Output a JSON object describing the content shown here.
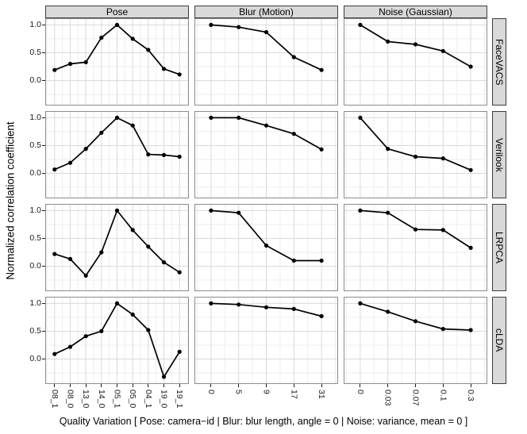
{
  "chart_data": {
    "type": "line",
    "title": "",
    "ylabel": "Normalized correlation coefficient",
    "xlabel": "Quality Variation [ Pose: camera−id | Blur: blur length, angle = 0 | Noise: variance, mean = 0 ]",
    "legend": "none",
    "grid": true,
    "ylim": [
      -0.45,
      1.12
    ],
    "y_ticks": [
      1.0,
      0.5,
      0.0
    ],
    "y_tick_labels": [
      "1.0",
      "0.5",
      "0.0"
    ],
    "y_minor_gridlines": [
      -0.25,
      0.25,
      0.75
    ],
    "facet_columns": [
      {
        "label": "Pose",
        "x_tick_labels": [
          "08_1",
          "08_0",
          "13_0",
          "14_0",
          "05_1",
          "05_0",
          "04_1",
          "19_0",
          "19_1"
        ]
      },
      {
        "label": "Blur (Motion)",
        "x_tick_labels": [
          "0",
          "5",
          "9",
          "17",
          "31"
        ]
      },
      {
        "label": "Noise (Gaussian)",
        "x_tick_labels": [
          "0",
          "0.03",
          "0.07",
          "0.1",
          "0.3"
        ]
      }
    ],
    "facet_rows": [
      "FaceVACS",
      "Verilook",
      "LRPCA",
      "cLDA"
    ],
    "series": {
      "FaceVACS": {
        "Pose": [
          0.19,
          0.3,
          0.33,
          0.77,
          1.0,
          0.75,
          0.55,
          0.21,
          0.11
        ],
        "Blur (Motion)": [
          1.0,
          0.96,
          0.87,
          0.42,
          0.19
        ],
        "Noise (Gaussian)": [
          1.0,
          0.7,
          0.65,
          0.53,
          0.25
        ]
      },
      "Verilook": {
        "Pose": [
          0.07,
          0.19,
          0.44,
          0.73,
          1.0,
          0.86,
          0.34,
          0.33,
          0.3
        ],
        "Blur (Motion)": [
          1.0,
          1.0,
          0.86,
          0.71,
          0.43
        ],
        "Noise (Gaussian)": [
          1.0,
          0.44,
          0.3,
          0.27,
          0.06
        ]
      },
      "LRPCA": {
        "Pose": [
          0.22,
          0.13,
          -0.17,
          0.25,
          1.0,
          0.65,
          0.35,
          0.07,
          -0.11
        ],
        "Blur (Motion)": [
          1.0,
          0.96,
          0.37,
          0.1,
          0.1
        ],
        "Noise (Gaussian)": [
          1.0,
          0.96,
          0.66,
          0.65,
          0.33
        ]
      },
      "cLDA": {
        "Pose": [
          0.09,
          0.22,
          0.41,
          0.5,
          1.0,
          0.8,
          0.52,
          -0.32,
          0.13
        ],
        "Blur (Motion)": [
          1.0,
          0.98,
          0.93,
          0.9,
          0.77
        ],
        "Noise (Gaussian)": [
          1.0,
          0.85,
          0.68,
          0.54,
          0.52
        ]
      }
    }
  },
  "style": {
    "strip_fill": "#d9d9d9",
    "strip_border": "#3c3c3c",
    "panel_border": "#8c8c8c",
    "grid_major_color": "#d9d9d9",
    "grid_minor_color": "#eeeeee",
    "line_color": "#000000",
    "point_color": "#000000",
    "tick_color": "#1a1a1a",
    "background": "#ffffff"
  }
}
